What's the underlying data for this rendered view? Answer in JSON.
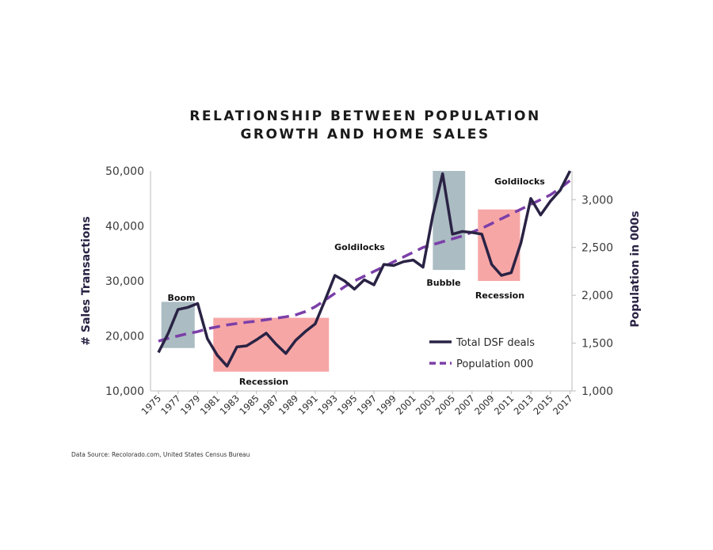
{
  "chart_data": {
    "type": "line",
    "title_lines": [
      "RELATIONSHIP BETWEEN POPULATION",
      "GROWTH AND HOME SALES"
    ],
    "ylabel_left": "# Sales Transactions",
    "ylabel_right": "Population in 000s",
    "ylim_left": [
      10000,
      50000
    ],
    "ylim_right": [
      1000,
      3300
    ],
    "yticks_left": [
      "10,000",
      "20,000",
      "30,000",
      "40,000",
      "50,000"
    ],
    "yticks_right": [
      "1,000",
      "1,500",
      "2,000",
      "2,500",
      "3,000"
    ],
    "x_tick_labels": [
      "1975",
      "1977",
      "1979",
      "1981",
      "1983",
      "1985",
      "1987",
      "1989",
      "1991",
      "1993",
      "1995",
      "1997",
      "1999",
      "2001",
      "2003",
      "2005",
      "2007",
      "2009",
      "2011",
      "2013",
      "2015",
      "2017"
    ],
    "x": [
      1975,
      1976,
      1977,
      1978,
      1979,
      1980,
      1981,
      1982,
      1983,
      1984,
      1985,
      1986,
      1987,
      1988,
      1989,
      1990,
      1991,
      1992,
      1993,
      1994,
      1995,
      1996,
      1997,
      1998,
      1999,
      2000,
      2001,
      2002,
      2003,
      2004,
      2005,
      2006,
      2007,
      2008,
      2009,
      2010,
      2011,
      2012,
      2013,
      2014,
      2015,
      2016,
      2017
    ],
    "series": [
      {
        "name": "Total DSF deals",
        "axis": "left",
        "color": "#2a2344",
        "style": "solid",
        "values": [
          17000,
          20500,
          24800,
          25200,
          25900,
          19500,
          16500,
          14500,
          18000,
          18200,
          19300,
          20500,
          18500,
          16800,
          19200,
          20800,
          22200,
          26500,
          31000,
          30000,
          28500,
          30200,
          29300,
          33000,
          32800,
          33500,
          33800,
          32500,
          42000,
          49500,
          38500,
          39000,
          38800,
          38500,
          33000,
          31000,
          31500,
          37000,
          45000,
          42000,
          44500,
          46500,
          50000
        ]
      },
      {
        "name": "Population 000",
        "axis": "right",
        "color": "#7b3fa8",
        "style": "dashed",
        "values": [
          1520,
          1550,
          1575,
          1600,
          1620,
          1650,
          1670,
          1690,
          1705,
          1718,
          1730,
          1745,
          1760,
          1775,
          1795,
          1830,
          1880,
          1950,
          2020,
          2090,
          2150,
          2200,
          2250,
          2300,
          2350,
          2400,
          2450,
          2500,
          2530,
          2560,
          2590,
          2620,
          2660,
          2700,
          2750,
          2800,
          2850,
          2900,
          2950,
          3000,
          3050,
          3120,
          3200
        ]
      }
    ],
    "legend_position": "lower-right",
    "annotations": [
      {
        "label": "Boom",
        "x": [
          1975.3,
          1978.7
        ],
        "y": [
          17800,
          26200
        ],
        "color": "#a7b8c0"
      },
      {
        "label": "Recession",
        "x": [
          1980.6,
          1992.4
        ],
        "y": [
          13500,
          23300
        ],
        "color": "#f7a1a1"
      },
      {
        "label": "Goldilocks",
        "x": null,
        "y": null,
        "color": null
      },
      {
        "label": "Bubble",
        "x": [
          2003.0,
          2006.3
        ],
        "y": [
          32000,
          50000
        ],
        "color": "#a7b8c0"
      },
      {
        "label": "Recession",
        "x": [
          2007.6,
          2011.9
        ],
        "y": [
          30000,
          43000
        ],
        "color": "#f7a1a1"
      },
      {
        "label": "Goldilocks",
        "x": null,
        "y": null,
        "color": null
      }
    ]
  },
  "legend": {
    "item1": "Total DSF deals",
    "item2": "Population 000"
  },
  "source": "Data Source: Recolorado.com, United States Census Bureau"
}
